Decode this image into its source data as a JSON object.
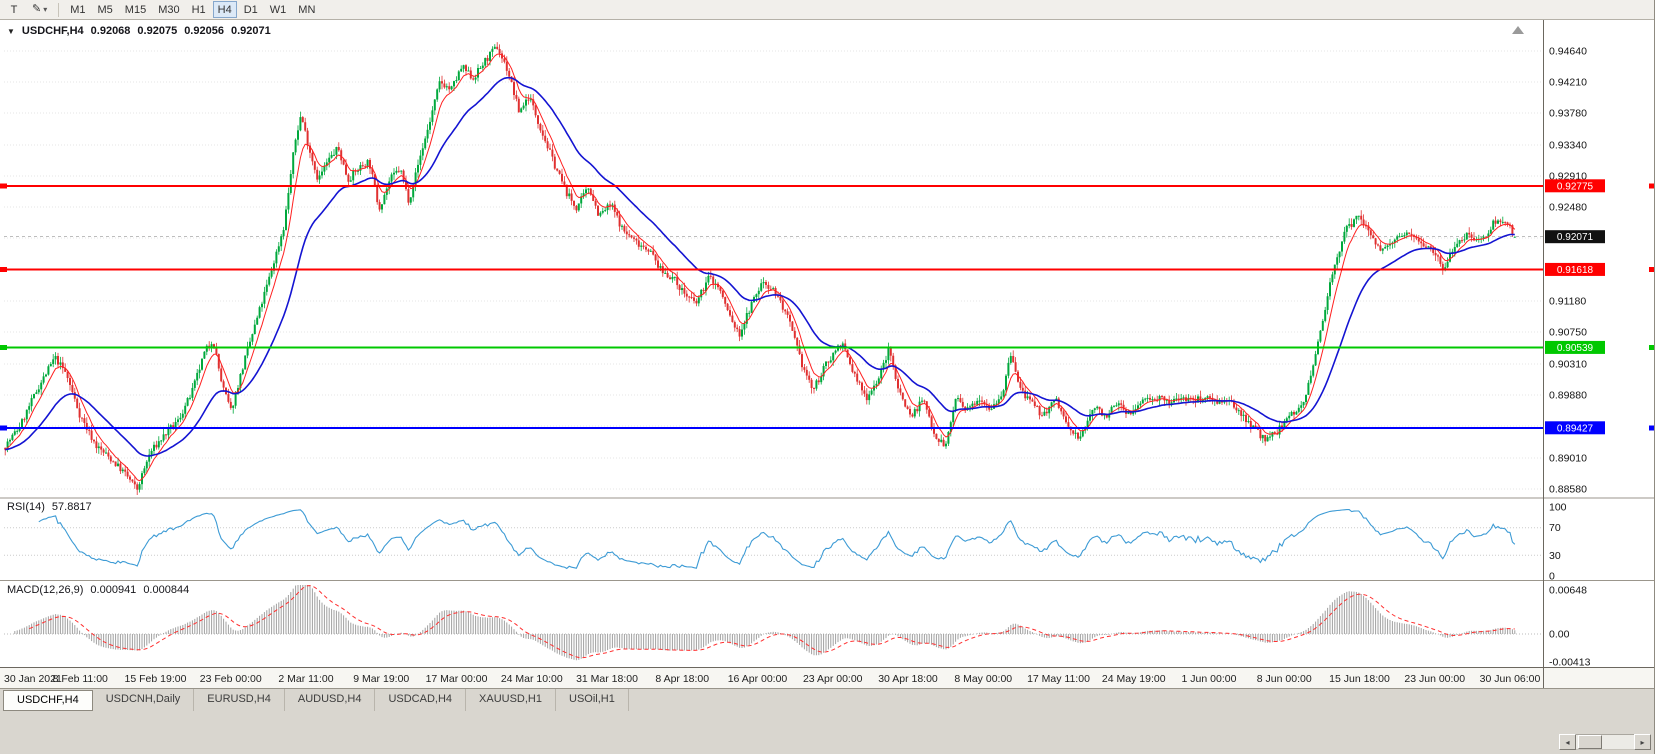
{
  "toolbar": {
    "tool_button_label": "T",
    "draw_icon": "✎",
    "dropdown_arrow": "▾",
    "timeframes": [
      "M1",
      "M5",
      "M15",
      "M30",
      "H1",
      "H4",
      "D1",
      "W1",
      "MN"
    ],
    "active_timeframe": "H4"
  },
  "chart": {
    "menu_arrow": "▼",
    "symbol": "USDCHF,H4",
    "open": "0.92068",
    "high": "0.92075",
    "low": "0.92056",
    "close": "0.92071",
    "price_ticks": [
      {
        "label": "0.94640",
        "value": 0.9464
      },
      {
        "label": "0.94210",
        "value": 0.9421
      },
      {
        "label": "0.93780",
        "value": 0.9378
      },
      {
        "label": "0.93340",
        "value": 0.9334
      },
      {
        "label": "0.92910",
        "value": 0.9291
      },
      {
        "label": "0.92480",
        "value": 0.9248
      },
      {
        "label": "0.91180",
        "value": 0.9118
      },
      {
        "label": "0.90750",
        "value": 0.9075
      },
      {
        "label": "0.90310",
        "value": 0.9031
      },
      {
        "label": "0.89880",
        "value": 0.8988
      },
      {
        "label": "0.89010",
        "value": 0.8901
      },
      {
        "label": "0.88580",
        "value": 0.8858
      }
    ],
    "grid_levels": [
      0.9464,
      0.9421,
      0.9378,
      0.9334,
      0.9291,
      0.9248,
      0.9205,
      0.9162,
      0.9118,
      0.9075,
      0.9031,
      0.8988,
      0.8945,
      0.8901,
      0.8858
    ],
    "hlines": [
      {
        "value": 0.92775,
        "label": "0.92775",
        "color": "#ff0000",
        "width": 2
      },
      {
        "value": 0.91618,
        "label": "0.91618",
        "color": "#ff0000",
        "width": 2
      },
      {
        "value": 0.90539,
        "label": "0.90539",
        "color": "#00c800",
        "width": 2
      },
      {
        "value": 0.89427,
        "label": "0.89427",
        "color": "#0000ff",
        "width": 2
      }
    ],
    "bid": {
      "value": 0.92071,
      "label": "0.92071",
      "color": "#111111"
    },
    "colors": {
      "up": "#00a83c",
      "down": "#e03030",
      "ma_fast": "#ff2020",
      "ma_slow": "#1414d2"
    }
  },
  "rsi": {
    "name": "RSI(14)",
    "value": "57.8817",
    "ticks": [
      {
        "label": "100",
        "value": 100
      },
      {
        "label": "70",
        "value": 70
      },
      {
        "label": "30",
        "value": 30
      },
      {
        "label": "0",
        "value": 0
      }
    ],
    "levels": [
      70,
      30
    ],
    "color": "#3d9bd5"
  },
  "macd": {
    "name": "MACD(12,26,9)",
    "value_main": "0.000941",
    "value_signal": "0.000844",
    "ticks": [
      {
        "label": "0.00648",
        "value": 0.00648
      },
      {
        "label": "0.00",
        "value": 0
      },
      {
        "label": "-0.00413",
        "value": -0.00413
      }
    ],
    "hist_color": "#a0a0a0",
    "signal_color": "#ff3030"
  },
  "time_axis": [
    "30 Jan 2021",
    "8 Feb 11:00",
    "15 Feb 19:00",
    "23 Feb 00:00",
    "2 Mar 11:00",
    "9 Mar 19:00",
    "17 Mar 00:00",
    "24 Mar 10:00",
    "31 Mar 18:00",
    "8 Apr 18:00",
    "16 Apr 00:00",
    "23 Apr 00:00",
    "30 Apr 18:00",
    "8 May 00:00",
    "17 May 11:00",
    "24 May 19:00",
    "1 Jun 00:00",
    "8 Jun 00:00",
    "15 Jun 18:00",
    "23 Jun 00:00",
    "30 Jun 06:00"
  ],
  "tabs": {
    "items": [
      "USDCHF,H4",
      "USDCNH,Daily",
      "EURUSD,H4",
      "AUDUSD,H4",
      "USDCAD,H4",
      "XAUUSD,H1",
      "USOil,H1"
    ],
    "active": 0
  },
  "bottom_bar": {
    "scroll_left": "◂",
    "scroll_right": "▸"
  },
  "chart_data": {
    "type": "candlestick",
    "symbol": "USDCHF",
    "timeframe": "H4",
    "last_ohlc": {
      "open": 0.92068,
      "high": 0.92075,
      "low": 0.92056,
      "close": 0.92071
    },
    "current_price": 0.92071,
    "y_axis": {
      "min": 0.8847,
      "max": 0.9504,
      "tick_step": 0.0043,
      "ticks": [
        0.9464,
        0.9421,
        0.9378,
        0.9334,
        0.9291,
        0.9248,
        0.9205,
        0.9162,
        0.9118,
        0.9075,
        0.9031,
        0.8988,
        0.8945,
        0.8901,
        0.8858
      ]
    },
    "x_axis_labels": [
      "30 Jan 2021",
      "8 Feb 11:00",
      "15 Feb 19:00",
      "23 Feb 00:00",
      "2 Mar 11:00",
      "9 Mar 19:00",
      "17 Mar 00:00",
      "24 Mar 10:00",
      "31 Mar 18:00",
      "8 Apr 18:00",
      "16 Apr 00:00",
      "23 Apr 00:00",
      "30 Apr 18:00",
      "8 May 00:00",
      "17 May 11:00",
      "24 May 19:00",
      "1 Jun 00:00",
      "8 Jun 00:00",
      "15 Jun 18:00",
      "23 Jun 00:00",
      "30 Jun 06:00"
    ],
    "horizontal_lines": [
      {
        "price": 0.92775,
        "color": "#ff0000"
      },
      {
        "price": 0.91618,
        "color": "#ff0000"
      },
      {
        "price": 0.90539,
        "color": "#00c800"
      },
      {
        "price": 0.89427,
        "color": "#0000ff"
      }
    ],
    "indicators": [
      {
        "name": "RSI",
        "period": 14,
        "current": 57.8817,
        "scale": [
          0,
          100
        ],
        "levels": [
          30,
          70
        ]
      },
      {
        "name": "MACD",
        "params": [
          12,
          26,
          9
        ],
        "current_macd": 0.000941,
        "current_signal": 0.000844,
        "scale": [
          -0.00413,
          0.00648
        ]
      }
    ],
    "price_path": [
      [
        4,
        0.8915
      ],
      [
        20,
        0.8945
      ],
      [
        38,
        0.8998
      ],
      [
        55,
        0.904
      ],
      [
        66,
        0.9018
      ],
      [
        80,
        0.896
      ],
      [
        96,
        0.8918
      ],
      [
        112,
        0.8898
      ],
      [
        126,
        0.8878
      ],
      [
        137,
        0.8857
      ],
      [
        150,
        0.8908
      ],
      [
        164,
        0.8932
      ],
      [
        178,
        0.8952
      ],
      [
        192,
        0.8992
      ],
      [
        205,
        0.9048
      ],
      [
        213,
        0.9066
      ],
      [
        222,
        0.9002
      ],
      [
        231,
        0.8966
      ],
      [
        245,
        0.9038
      ],
      [
        258,
        0.9098
      ],
      [
        271,
        0.9158
      ],
      [
        284,
        0.9222
      ],
      [
        295,
        0.9338
      ],
      [
        301,
        0.9376
      ],
      [
        309,
        0.933
      ],
      [
        318,
        0.9286
      ],
      [
        328,
        0.9312
      ],
      [
        338,
        0.933
      ],
      [
        348,
        0.9286
      ],
      [
        359,
        0.9302
      ],
      [
        369,
        0.9312
      ],
      [
        379,
        0.9246
      ],
      [
        390,
        0.9286
      ],
      [
        400,
        0.9302
      ],
      [
        409,
        0.9256
      ],
      [
        419,
        0.9312
      ],
      [
        429,
        0.9362
      ],
      [
        440,
        0.9422
      ],
      [
        451,
        0.941
      ],
      [
        462,
        0.9442
      ],
      [
        473,
        0.9426
      ],
      [
        486,
        0.9452
      ],
      [
        497,
        0.947
      ],
      [
        508,
        0.9436
      ],
      [
        519,
        0.938
      ],
      [
        529,
        0.9402
      ],
      [
        541,
        0.9356
      ],
      [
        553,
        0.9312
      ],
      [
        566,
        0.927
      ],
      [
        576,
        0.9246
      ],
      [
        589,
        0.9276
      ],
      [
        599,
        0.9236
      ],
      [
        611,
        0.9252
      ],
      [
        623,
        0.9216
      ],
      [
        636,
        0.92
      ],
      [
        649,
        0.919
      ],
      [
        661,
        0.916
      ],
      [
        673,
        0.915
      ],
      [
        686,
        0.9126
      ],
      [
        696,
        0.9114
      ],
      [
        709,
        0.9152
      ],
      [
        719,
        0.9136
      ],
      [
        729,
        0.91
      ],
      [
        739,
        0.907
      ],
      [
        751,
        0.9112
      ],
      [
        763,
        0.9146
      ],
      [
        776,
        0.913
      ],
      [
        789,
        0.909
      ],
      [
        801,
        0.9034
      ],
      [
        813,
        0.8994
      ],
      [
        826,
        0.903
      ],
      [
        841,
        0.9062
      ],
      [
        853,
        0.902
      ],
      [
        866,
        0.8984
      ],
      [
        879,
        0.9012
      ],
      [
        889,
        0.9052
      ],
      [
        899,
        0.8994
      ],
      [
        911,
        0.8958
      ],
      [
        923,
        0.8982
      ],
      [
        936,
        0.893
      ],
      [
        946,
        0.8918
      ],
      [
        956,
        0.8986
      ],
      [
        966,
        0.8964
      ],
      [
        979,
        0.8986
      ],
      [
        991,
        0.897
      ],
      [
        1003,
        0.8992
      ],
      [
        1011,
        0.9046
      ],
      [
        1019,
        0.9
      ],
      [
        1031,
        0.8976
      ],
      [
        1043,
        0.896
      ],
      [
        1056,
        0.8982
      ],
      [
        1069,
        0.894
      ],
      [
        1081,
        0.8928
      ],
      [
        1093,
        0.8972
      ],
      [
        1106,
        0.896
      ],
      [
        1119,
        0.8976
      ],
      [
        1131,
        0.896
      ],
      [
        1143,
        0.8982
      ],
      [
        1156,
        0.8986
      ],
      [
        1169,
        0.8976
      ],
      [
        1181,
        0.8986
      ],
      [
        1193,
        0.898
      ],
      [
        1206,
        0.8986
      ],
      [
        1219,
        0.898
      ],
      [
        1231,
        0.8976
      ],
      [
        1243,
        0.896
      ],
      [
        1256,
        0.894
      ],
      [
        1266,
        0.8924
      ],
      [
        1279,
        0.894
      ],
      [
        1291,
        0.8962
      ],
      [
        1301,
        0.8972
      ],
      [
        1311,
        0.9012
      ],
      [
        1321,
        0.9082
      ],
      [
        1333,
        0.9162
      ],
      [
        1346,
        0.9216
      ],
      [
        1359,
        0.9236
      ],
      [
        1371,
        0.921
      ],
      [
        1383,
        0.9186
      ],
      [
        1396,
        0.9202
      ],
      [
        1409,
        0.9216
      ],
      [
        1421,
        0.92
      ],
      [
        1433,
        0.919
      ],
      [
        1444,
        0.9162
      ],
      [
        1456,
        0.92
      ],
      [
        1469,
        0.9212
      ],
      [
        1481,
        0.92
      ],
      [
        1493,
        0.9226
      ],
      [
        1506,
        0.923
      ],
      [
        1516,
        0.9207
      ]
    ]
  }
}
